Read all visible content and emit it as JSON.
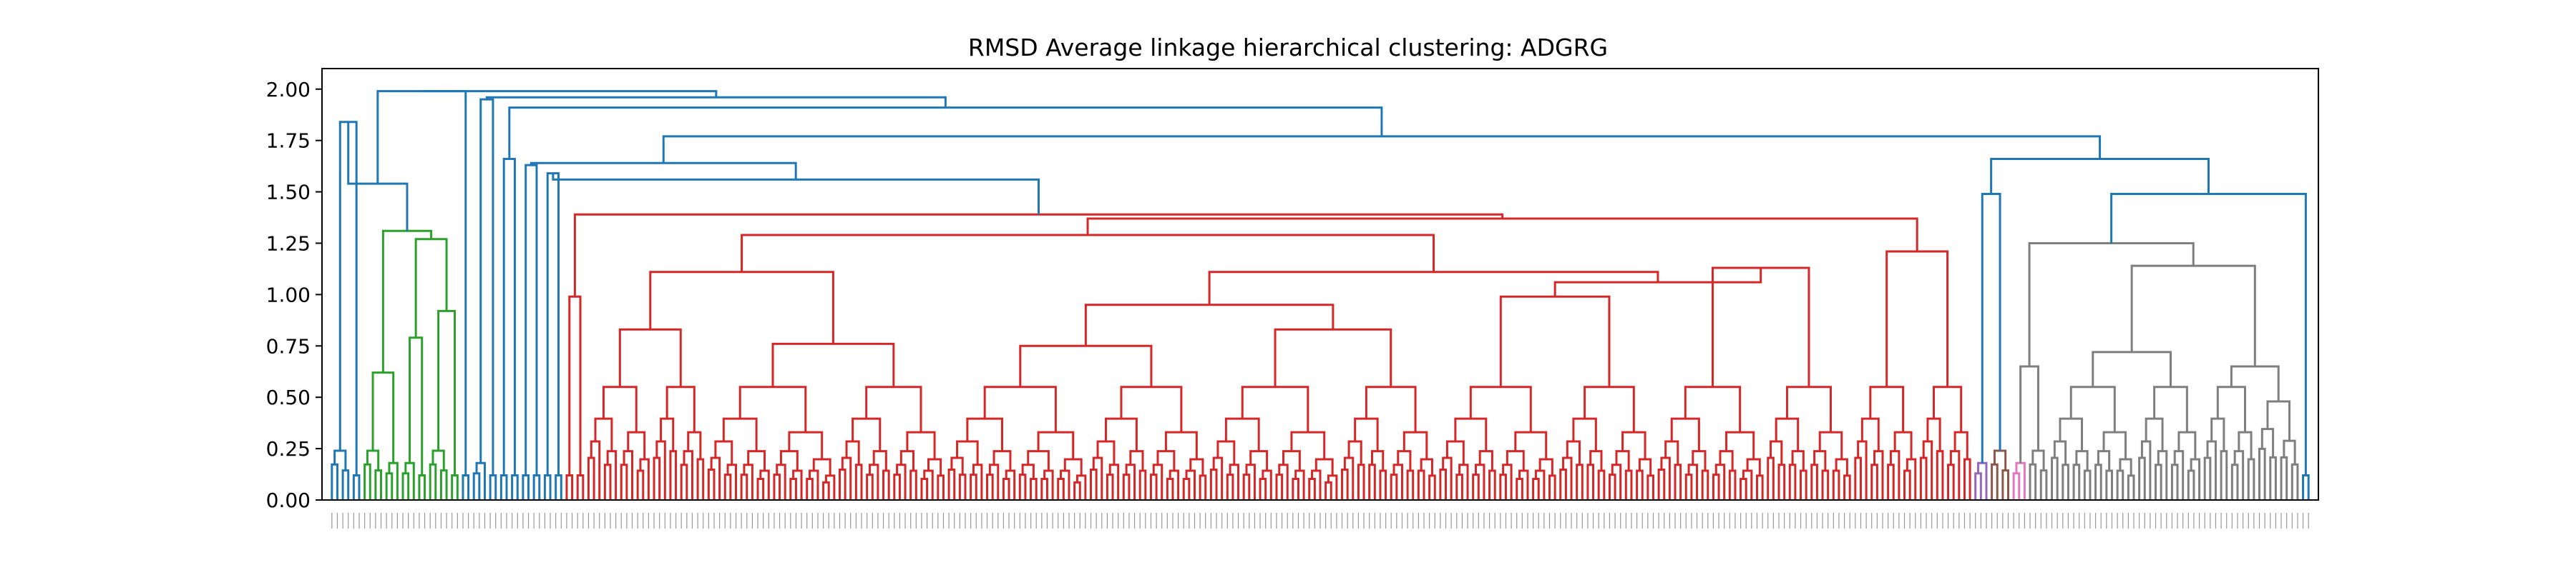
{
  "chart_data": {
    "type": "dendrogram",
    "title": "RMSD Average linkage hierarchical clustering: ADGRG",
    "xlabel": "",
    "ylabel": "",
    "ylim": [
      0,
      2.1
    ],
    "yticks": [
      "0.00",
      "0.25",
      "0.50",
      "0.75",
      "1.00",
      "1.25",
      "1.50",
      "1.75",
      "2.00"
    ],
    "grid": false,
    "colors": {
      "above_threshold": "#1f77b4",
      "green": "#2ca02c",
      "red": "#d62728",
      "purple": "#9467bd",
      "brown": "#8c564b",
      "pink": "#e377c2",
      "gray": "#7f7f7f"
    },
    "tree": [
      "b",
      1.99,
      [
        "b",
        1.99,
        [
          "b",
          1.54,
          [
            "b",
            1.84,
            [
              "l",
              4,
              "b"
            ],
            [
              "l",
              2,
              "b"
            ]
          ],
          [
            "g",
            1.31,
            [
              "g",
              0.62,
              [
                "l",
                4,
                "g"
              ],
              [
                "l",
                3,
                "g"
              ]
            ],
            [
              "g",
              1.27,
              [
                "g",
                0.79,
                [
                  "l",
                  3,
                  "g"
                ],
                [
                  "l",
                  2,
                  "g"
                ]
              ],
              [
                "g",
                0.92,
                [
                  "l",
                  4,
                  "g"
                ],
                [
                  "l",
                  2,
                  "g"
                ]
              ]
            ]
          ]
        ],
        [
          "l",
          2,
          "b"
        ]
      ],
      [
        "b",
        1.96,
        [
          "b",
          1.95,
          [
            "l",
            3,
            "b"
          ],
          [
            "l",
            2,
            "b"
          ]
        ],
        [
          "b",
          1.91,
          [
            "b",
            1.66,
            [
              "l",
              2,
              "b"
            ],
            [
              "l",
              2,
              "b"
            ]
          ],
          [
            "b",
            1.77,
            [
              "b",
              1.64,
              [
                "b",
                1.63,
                [
                  "l",
                  2,
                  "b"
                ],
                [
                  "l",
                  2,
                  "b"
                ]
              ],
              [
                "b",
                1.56,
                [
                  "b",
                  1.59,
                  [
                    "l",
                    2,
                    "b"
                  ],
                  [
                    "l",
                    2,
                    "b"
                  ]
                ],
                [
                  "r",
                  1.39,
                  [
                    "r",
                    0.99,
                    [
                      "l",
                      2,
                      "r"
                    ],
                    [
                      "l",
                      2,
                      "r"
                    ]
                  ],
                  [
                    "r",
                    1.37,
                    [
                      "r",
                      1.29,
                      [
                        "r",
                        1.11,
                        [
                          "r",
                          0.83,
                          [
                            "l",
                            12,
                            "r"
                          ],
                          [
                            "l",
                            10,
                            "r"
                          ]
                        ],
                        [
                          "r",
                          0.76,
                          [
                            "l",
                            24,
                            "r"
                          ],
                          [
                            "l",
                            20,
                            "r"
                          ]
                        ]
                      ],
                      [
                        "r",
                        1.11,
                        [
                          "r",
                          0.95,
                          [
                            "r",
                            0.75,
                            [
                              "l",
                              26,
                              "r"
                            ],
                            [
                              "l",
                              22,
                              "r"
                            ]
                          ],
                          [
                            "r",
                            0.83,
                            [
                              "l",
                              24,
                              "r"
                            ],
                            [
                              "l",
                              18,
                              "r"
                            ]
                          ]
                        ],
                        [
                          "r",
                          1.06,
                          [
                            "r",
                            0.99,
                            [
                              "l",
                              22,
                              "r"
                            ],
                            [
                              "l",
                              18,
                              "r"
                            ]
                          ],
                          [
                            "r",
                            1.13,
                            [
                              "l",
                              20,
                              "r"
                            ],
                            [
                              "l",
                              16,
                              "r"
                            ]
                          ]
                        ]
                      ]
                    ],
                    [
                      "r",
                      1.21,
                      [
                        "l",
                        12,
                        "r"
                      ],
                      [
                        "l",
                        10,
                        "r"
                      ]
                    ]
                  ]
                ]
              ]
            ],
            [
              "b",
              1.66,
              [
                "b",
                1.49,
                [
                  "l",
                  3,
                  "p"
                ],
                [
                  "l",
                  4,
                  "br"
                ]
              ],
              [
                "b",
                1.49,
                [
                  "k",
                  1.25,
                  [
                    "k",
                    0.65,
                    [
                      "l",
                      3,
                      "pk"
                    ],
                    [
                      "l",
                      4,
                      "k"
                    ]
                  ],
                  [
                    "k",
                    1.14,
                    [
                      "k",
                      0.72,
                      [
                        "l",
                        16,
                        "k"
                      ],
                      [
                        "l",
                        12,
                        "k"
                      ]
                    ],
                    [
                      "k",
                      0.65,
                      [
                        "l",
                        10,
                        "k"
                      ],
                      [
                        "l",
                        8,
                        "k"
                      ]
                    ]
                  ]
                ],
                [
                  "l",
                  2,
                  "b"
                ]
              ]
            ]
          ]
        ]
      ]
    ]
  }
}
